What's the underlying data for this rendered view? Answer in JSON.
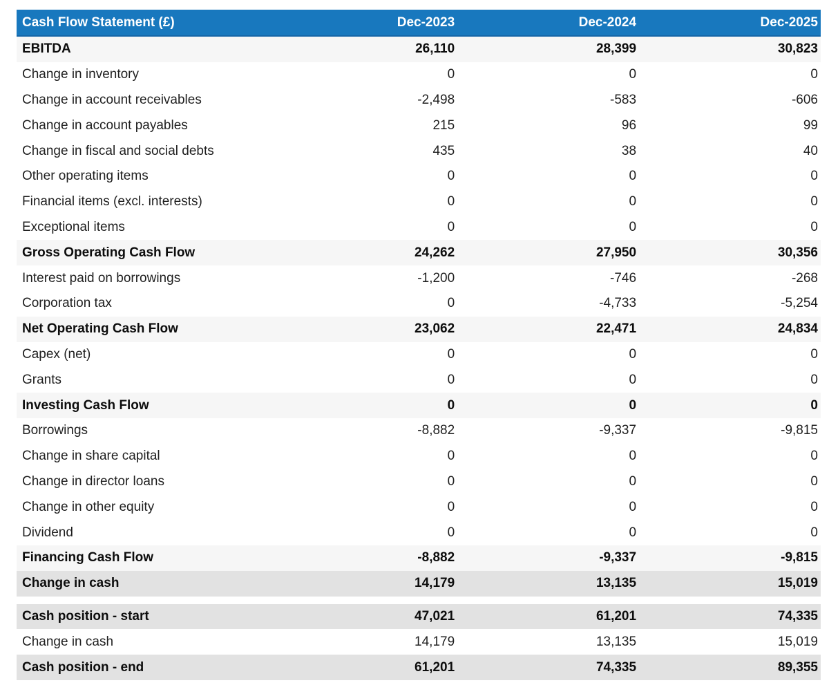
{
  "table": {
    "title": "Cash Flow Statement (£)",
    "columns": [
      "Dec-2023",
      "Dec-2024",
      "Dec-2025"
    ],
    "rows": [
      {
        "label": "EBITDA",
        "values": [
          "26,110",
          "28,399",
          "30,823"
        ],
        "style": "subtotal"
      },
      {
        "label": "Change in inventory",
        "values": [
          "0",
          "0",
          "0"
        ],
        "style": "normal"
      },
      {
        "label": "Change in account receivables",
        "values": [
          "-2,498",
          "-583",
          "-606"
        ],
        "style": "normal"
      },
      {
        "label": "Change in account payables",
        "values": [
          "215",
          "96",
          "99"
        ],
        "style": "normal"
      },
      {
        "label": "Change in fiscal and social debts",
        "values": [
          "435",
          "38",
          "40"
        ],
        "style": "normal"
      },
      {
        "label": "Other operating items",
        "values": [
          "0",
          "0",
          "0"
        ],
        "style": "normal"
      },
      {
        "label": "Financial items (excl. interests)",
        "values": [
          "0",
          "0",
          "0"
        ],
        "style": "normal"
      },
      {
        "label": "Exceptional items",
        "values": [
          "0",
          "0",
          "0"
        ],
        "style": "normal"
      },
      {
        "label": "Gross Operating Cash Flow",
        "values": [
          "24,262",
          "27,950",
          "30,356"
        ],
        "style": "subtotal"
      },
      {
        "label": "Interest paid on borrowings",
        "values": [
          "-1,200",
          "-746",
          "-268"
        ],
        "style": "normal"
      },
      {
        "label": "Corporation tax",
        "values": [
          "0",
          "-4,733",
          "-5,254"
        ],
        "style": "normal"
      },
      {
        "label": "Net Operating Cash Flow",
        "values": [
          "23,062",
          "22,471",
          "24,834"
        ],
        "style": "subtotal"
      },
      {
        "label": "Capex (net)",
        "values": [
          "0",
          "0",
          "0"
        ],
        "style": "normal"
      },
      {
        "label": "Grants",
        "values": [
          "0",
          "0",
          "0"
        ],
        "style": "normal"
      },
      {
        "label": "Investing Cash Flow",
        "values": [
          "0",
          "0",
          "0"
        ],
        "style": "subtotal"
      },
      {
        "label": "Borrowings",
        "values": [
          "-8,882",
          "-9,337",
          "-9,815"
        ],
        "style": "normal"
      },
      {
        "label": "Change in share capital",
        "values": [
          "0",
          "0",
          "0"
        ],
        "style": "normal"
      },
      {
        "label": "Change in director loans",
        "values": [
          "0",
          "0",
          "0"
        ],
        "style": "normal"
      },
      {
        "label": "Change in other equity",
        "values": [
          "0",
          "0",
          "0"
        ],
        "style": "normal"
      },
      {
        "label": "Dividend",
        "values": [
          "0",
          "0",
          "0"
        ],
        "style": "normal"
      },
      {
        "label": "Financing Cash Flow",
        "values": [
          "-8,882",
          "-9,337",
          "-9,815"
        ],
        "style": "subtotal"
      },
      {
        "label": "Change in cash",
        "values": [
          "14,179",
          "13,135",
          "15,019"
        ],
        "style": "total"
      },
      {
        "label": "",
        "values": [
          "",
          "",
          ""
        ],
        "style": "spacer"
      },
      {
        "label": "Cash position - start",
        "values": [
          "47,021",
          "61,201",
          "74,335"
        ],
        "style": "total"
      },
      {
        "label": "Change in cash",
        "values": [
          "14,179",
          "13,135",
          "15,019"
        ],
        "style": "normal"
      },
      {
        "label": "Cash position - end",
        "values": [
          "61,201",
          "74,335",
          "89,355"
        ],
        "style": "total"
      }
    ]
  },
  "chart_data": {
    "type": "table",
    "title": "Cash Flow Statement (£)",
    "columns": [
      "Dec-2023",
      "Dec-2024",
      "Dec-2025"
    ],
    "rows": [
      {
        "label": "EBITDA",
        "values": [
          26110,
          28399,
          30823
        ]
      },
      {
        "label": "Change in inventory",
        "values": [
          0,
          0,
          0
        ]
      },
      {
        "label": "Change in account receivables",
        "values": [
          -2498,
          -583,
          -606
        ]
      },
      {
        "label": "Change in account payables",
        "values": [
          215,
          96,
          99
        ]
      },
      {
        "label": "Change in fiscal and social debts",
        "values": [
          435,
          38,
          40
        ]
      },
      {
        "label": "Other operating items",
        "values": [
          0,
          0,
          0
        ]
      },
      {
        "label": "Financial items (excl. interests)",
        "values": [
          0,
          0,
          0
        ]
      },
      {
        "label": "Exceptional items",
        "values": [
          0,
          0,
          0
        ]
      },
      {
        "label": "Gross Operating Cash Flow",
        "values": [
          24262,
          27950,
          30356
        ]
      },
      {
        "label": "Interest paid on borrowings",
        "values": [
          -1200,
          -746,
          -268
        ]
      },
      {
        "label": "Corporation tax",
        "values": [
          0,
          -4733,
          -5254
        ]
      },
      {
        "label": "Net Operating Cash Flow",
        "values": [
          23062,
          22471,
          24834
        ]
      },
      {
        "label": "Capex (net)",
        "values": [
          0,
          0,
          0
        ]
      },
      {
        "label": "Grants",
        "values": [
          0,
          0,
          0
        ]
      },
      {
        "label": "Investing Cash Flow",
        "values": [
          0,
          0,
          0
        ]
      },
      {
        "label": "Borrowings",
        "values": [
          -8882,
          -9337,
          -9815
        ]
      },
      {
        "label": "Change in share capital",
        "values": [
          0,
          0,
          0
        ]
      },
      {
        "label": "Change in director loans",
        "values": [
          0,
          0,
          0
        ]
      },
      {
        "label": "Change in other equity",
        "values": [
          0,
          0,
          0
        ]
      },
      {
        "label": "Dividend",
        "values": [
          0,
          0,
          0
        ]
      },
      {
        "label": "Financing Cash Flow",
        "values": [
          -8882,
          -9337,
          -9815
        ]
      },
      {
        "label": "Change in cash",
        "values": [
          14179,
          13135,
          15019
        ]
      },
      {
        "label": "Cash position - start",
        "values": [
          47021,
          61201,
          74335
        ]
      },
      {
        "label": "Change in cash",
        "values": [
          14179,
          13135,
          15019
        ]
      },
      {
        "label": "Cash position - end",
        "values": [
          61201,
          74335,
          89355
        ]
      }
    ]
  },
  "colors": {
    "header_bg": "#1878be",
    "header_border": "#1565a7",
    "header_text": "#ffffff",
    "subtotal_bg": "#f6f6f6",
    "total_bg": "#e2e2e2",
    "row_text": "#1f1f1f"
  }
}
